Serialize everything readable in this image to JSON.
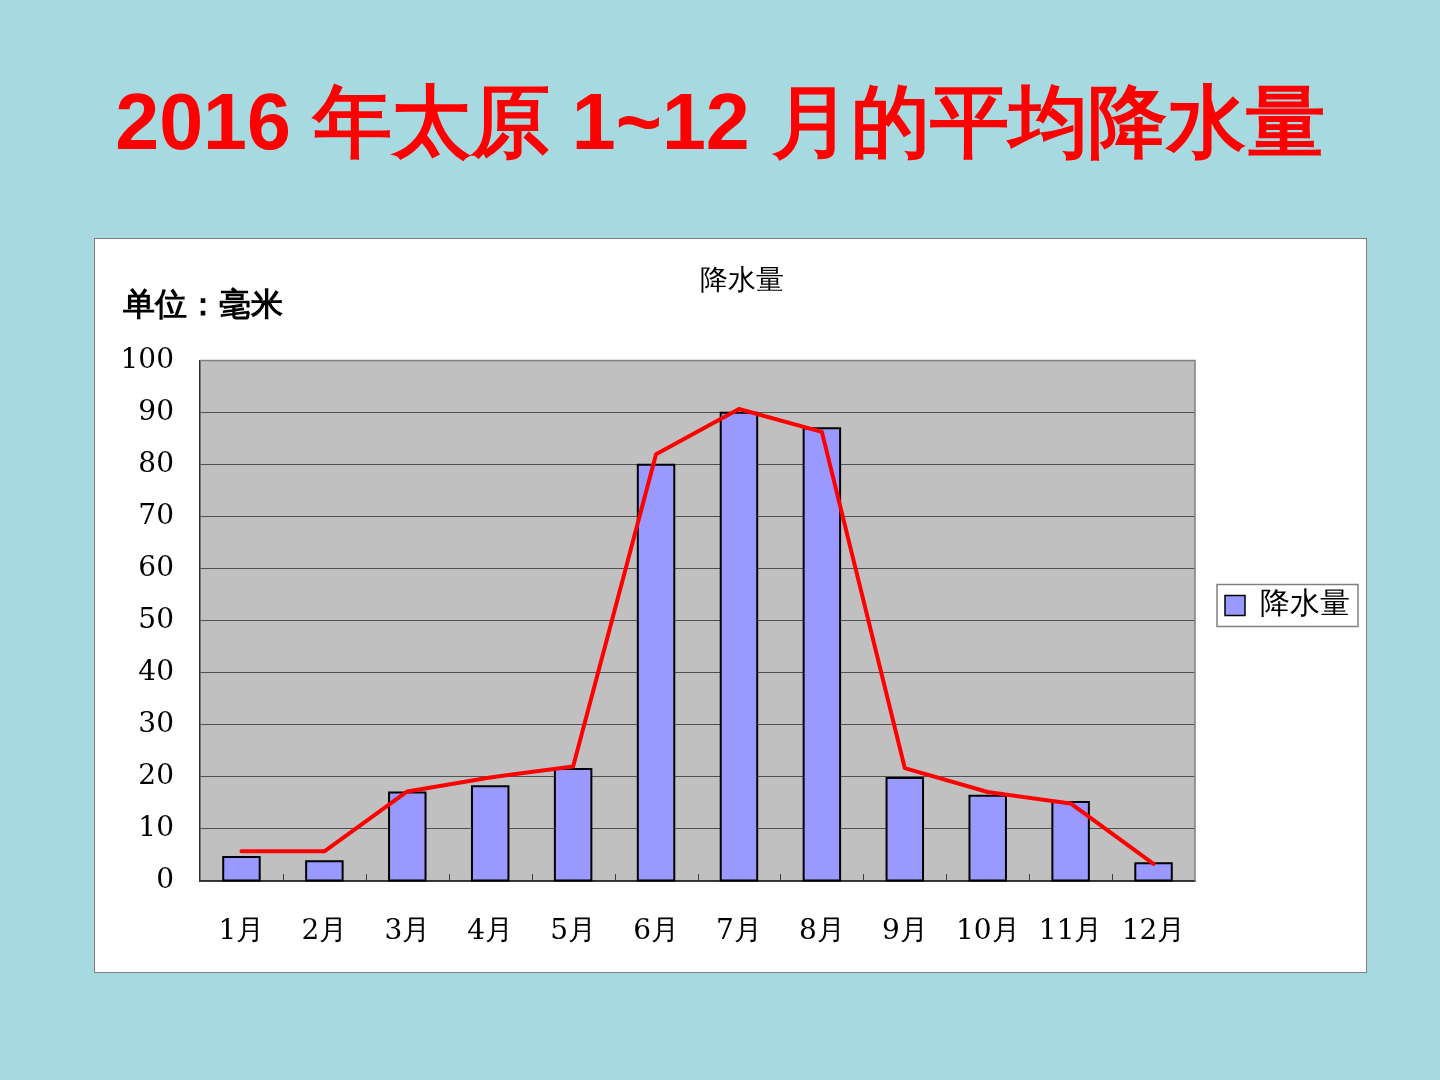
{
  "chart_data": {
    "type": "bar",
    "title": "2016 年太原 1~12 月的平均降水量",
    "subtitle": "降水量",
    "ylabel": "单位：毫米",
    "categories": [
      "1月",
      "2月",
      "3月",
      "4月",
      "5月",
      "6月",
      "7月",
      "8月",
      "9月",
      "10月",
      "11月",
      "12月"
    ],
    "series": [
      {
        "name": "降水量",
        "color": "#9999ff",
        "values": [
          4.6,
          3.8,
          17,
          18.2,
          21.5,
          80,
          90,
          87,
          19.8,
          16.4,
          15.2,
          3.4
        ]
      },
      {
        "type": "line",
        "color": "#ff0000",
        "values": [
          5.7,
          5.7,
          17.2,
          19.9,
          22,
          82,
          90.7,
          86.3,
          21.7,
          17.1,
          14.9,
          3.3
        ]
      }
    ],
    "ylim": [
      0,
      100
    ],
    "yticks": [
      0,
      10,
      20,
      30,
      40,
      50,
      60,
      70,
      80,
      90,
      100
    ],
    "grid": "y",
    "legend": "right",
    "marker": "none"
  }
}
